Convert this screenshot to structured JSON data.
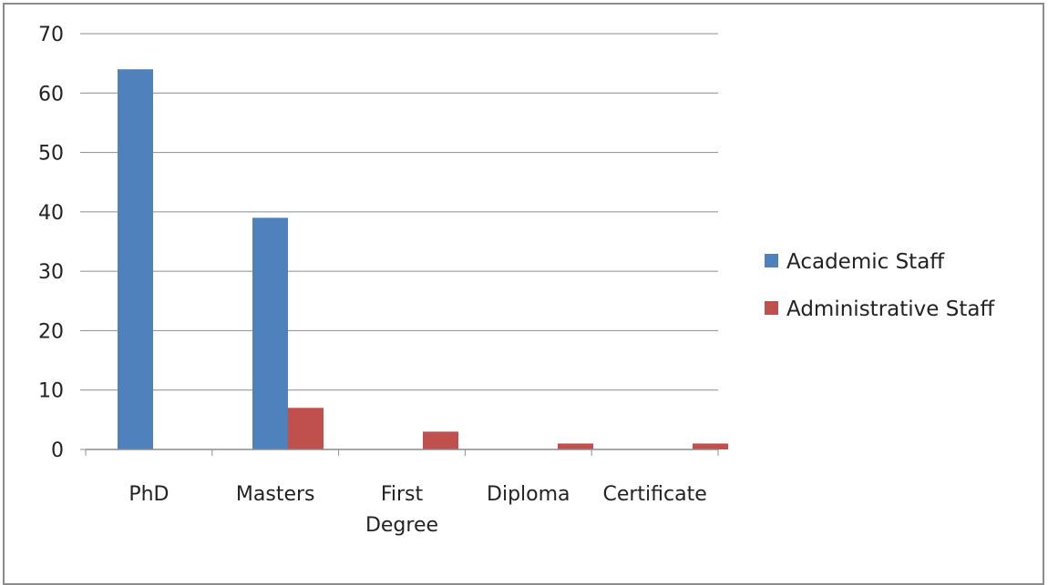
{
  "chart_data": {
    "type": "bar",
    "categories": [
      "PhD",
      "Masters",
      "First Degree",
      "Diploma",
      "Certificate"
    ],
    "category_lines": [
      [
        "PhD"
      ],
      [
        "Masters"
      ],
      [
        "First",
        "Degree"
      ],
      [
        "Diploma"
      ],
      [
        "Certificate"
      ]
    ],
    "series": [
      {
        "name": "Academic Staff",
        "values": [
          64,
          39,
          0,
          0,
          0
        ],
        "color": "#4f81bd"
      },
      {
        "name": "Administrative Staff",
        "values": [
          0,
          7,
          3,
          1,
          1
        ],
        "color": "#c0504d"
      }
    ],
    "ylim": [
      0,
      70
    ],
    "yticks": [
      0,
      10,
      20,
      30,
      40,
      50,
      60,
      70
    ],
    "title": "",
    "xlabel": "",
    "ylabel": "",
    "grid": true,
    "legend_position": "right"
  },
  "colors": {
    "gridline": "#8c8c8c",
    "axis": "#8c8c8c",
    "frame": "#8c8c8c"
  }
}
